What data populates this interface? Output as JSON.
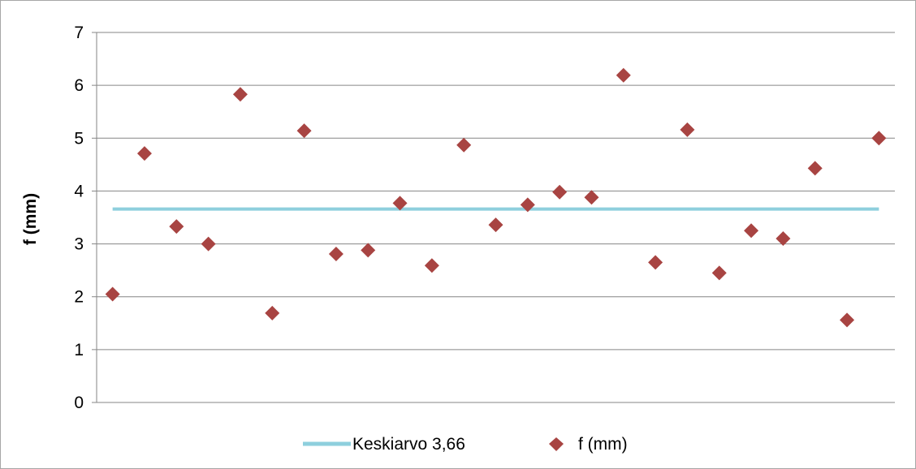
{
  "chart_data": {
    "type": "scatter",
    "ylabel": "f (mm)",
    "xlabel": "",
    "ylim": [
      0,
      7
    ],
    "yticks": [
      "0",
      "1",
      "2",
      "3",
      "4",
      "5",
      "6",
      "7"
    ],
    "grid": true,
    "legend_position": "bottom",
    "series": [
      {
        "name": "Keskiarvo 3,66",
        "kind": "line",
        "color": "#8ECFDD",
        "values": [
          3.66,
          3.66,
          3.66,
          3.66,
          3.66,
          3.66,
          3.66,
          3.66,
          3.66,
          3.66,
          3.66,
          3.66,
          3.66,
          3.66,
          3.66,
          3.66,
          3.66,
          3.66,
          3.66,
          3.66,
          3.66,
          3.66,
          3.66,
          3.66,
          3.66
        ]
      },
      {
        "name": "f (mm)",
        "kind": "marker",
        "marker": "diamond",
        "color": "#A84442",
        "values": [
          2.05,
          4.71,
          3.33,
          3.0,
          5.83,
          1.69,
          5.14,
          2.81,
          2.88,
          3.77,
          2.59,
          4.87,
          3.36,
          3.74,
          3.98,
          3.88,
          6.19,
          2.65,
          5.16,
          2.45,
          3.25,
          3.1,
          4.43,
          1.56,
          5.0
        ]
      }
    ]
  }
}
